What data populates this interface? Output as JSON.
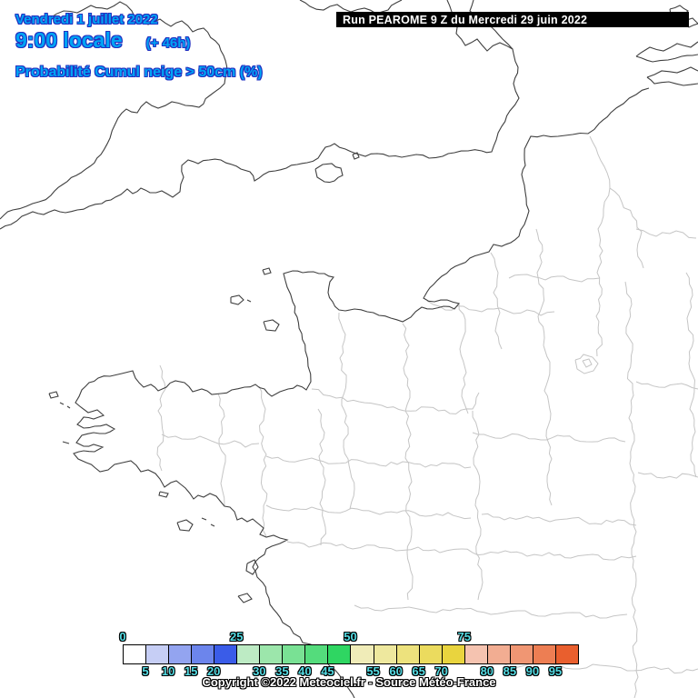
{
  "header": {
    "date_line": "Vendredi 1 juillet 2022",
    "time_line": "9:00 locale",
    "forecast_offset": "(+ 46h)",
    "parameter_line": "Probabilité Cumul neige > 50cm (%)",
    "text_color": "#00a4f4",
    "outline_color": "#2230c0"
  },
  "run_banner": {
    "text": "Run PEAROME 9 Z du Mercredi 29 juin 2022",
    "background": "#000000",
    "color": "#ffffff"
  },
  "legend": {
    "title_unit": "%",
    "tick_values": [
      0,
      5,
      10,
      15,
      20,
      25,
      30,
      35,
      40,
      45,
      50,
      55,
      60,
      65,
      70,
      75,
      80,
      85,
      90,
      95
    ],
    "top_tick_values": [
      0,
      25,
      50,
      75
    ],
    "cell_colors": [
      "#ffffff",
      "#c6cef5",
      "#93a4f0",
      "#6c85ec",
      "#3a5ce8",
      "#bdebc4",
      "#9ce6ab",
      "#79e194",
      "#54dc7c",
      "#2fd662",
      "#f0ecb8",
      "#eee89e",
      "#ede27d",
      "#ebdb5e",
      "#e9d43e",
      "#f5c3b0",
      "#f2ad92",
      "#f09673",
      "#ed7e53",
      "#e95f2e"
    ],
    "tick_color": "#54dce4"
  },
  "footer": {
    "copyright": "Copyright ©2022 Meteociel.fr - Source Météo-France"
  },
  "map": {
    "coast_color": "#3f3f3f",
    "border_color": "#c5c5c5",
    "background": "#ffffff"
  }
}
